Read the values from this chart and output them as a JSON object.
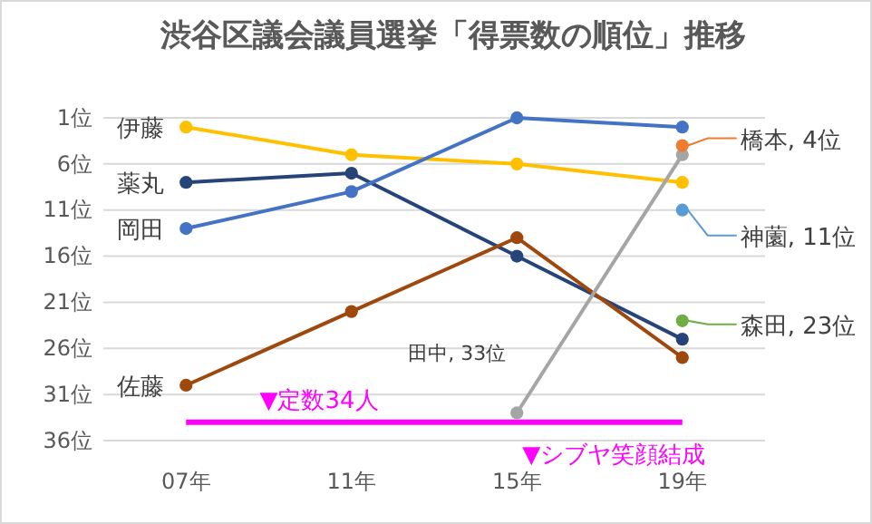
{
  "chart_data": {
    "type": "line",
    "title": "渋谷区議会議員選挙「得票数の順位」推移",
    "categories": [
      "07年",
      "11年",
      "15年",
      "19年"
    ],
    "series": [
      {
        "name": "伊藤",
        "color": "#ffc000",
        "values": [
          2,
          5,
          6,
          8
        ]
      },
      {
        "name": "薬丸",
        "color": "#264478",
        "values": [
          8,
          7,
          16,
          25
        ]
      },
      {
        "name": "岡田",
        "color": "#4472c4",
        "values": [
          13,
          9,
          1,
          2
        ]
      },
      {
        "name": "佐藤",
        "color": "#9e480e",
        "values": [
          30,
          22,
          14,
          27
        ]
      },
      {
        "name": "田中, 33位",
        "color": "#a5a5a5",
        "values": [
          null,
          null,
          33,
          5
        ]
      },
      {
        "name": "橋本, 4位",
        "color": "#ed7d31",
        "values": [
          null,
          null,
          null,
          4
        ]
      },
      {
        "name": "神薗, 11位",
        "color": "#5b9bd5",
        "values": [
          null,
          null,
          null,
          11
        ]
      },
      {
        "name": "森田, 23位",
        "color": "#70ad47",
        "values": [
          null,
          null,
          null,
          23
        ]
      }
    ],
    "ylim": [
      36,
      1
    ],
    "yticks": [
      {
        "value": 1,
        "label": "1位"
      },
      {
        "value": 6,
        "label": "6位"
      },
      {
        "value": 11,
        "label": "11位"
      },
      {
        "value": 16,
        "label": "16位"
      },
      {
        "value": 21,
        "label": "21位"
      },
      {
        "value": 26,
        "label": "26位"
      },
      {
        "value": 31,
        "label": "31位"
      },
      {
        "value": 36,
        "label": "36位"
      }
    ],
    "grid": "y",
    "legend": "right",
    "marker": "circle",
    "line_style": "solid",
    "ref_lines": [
      {
        "axis": "y",
        "value": 34,
        "label": "▼定数34人",
        "color": "#ff00ff"
      }
    ],
    "annotations": [
      "▼シブヤ笑顔結成"
    ]
  }
}
